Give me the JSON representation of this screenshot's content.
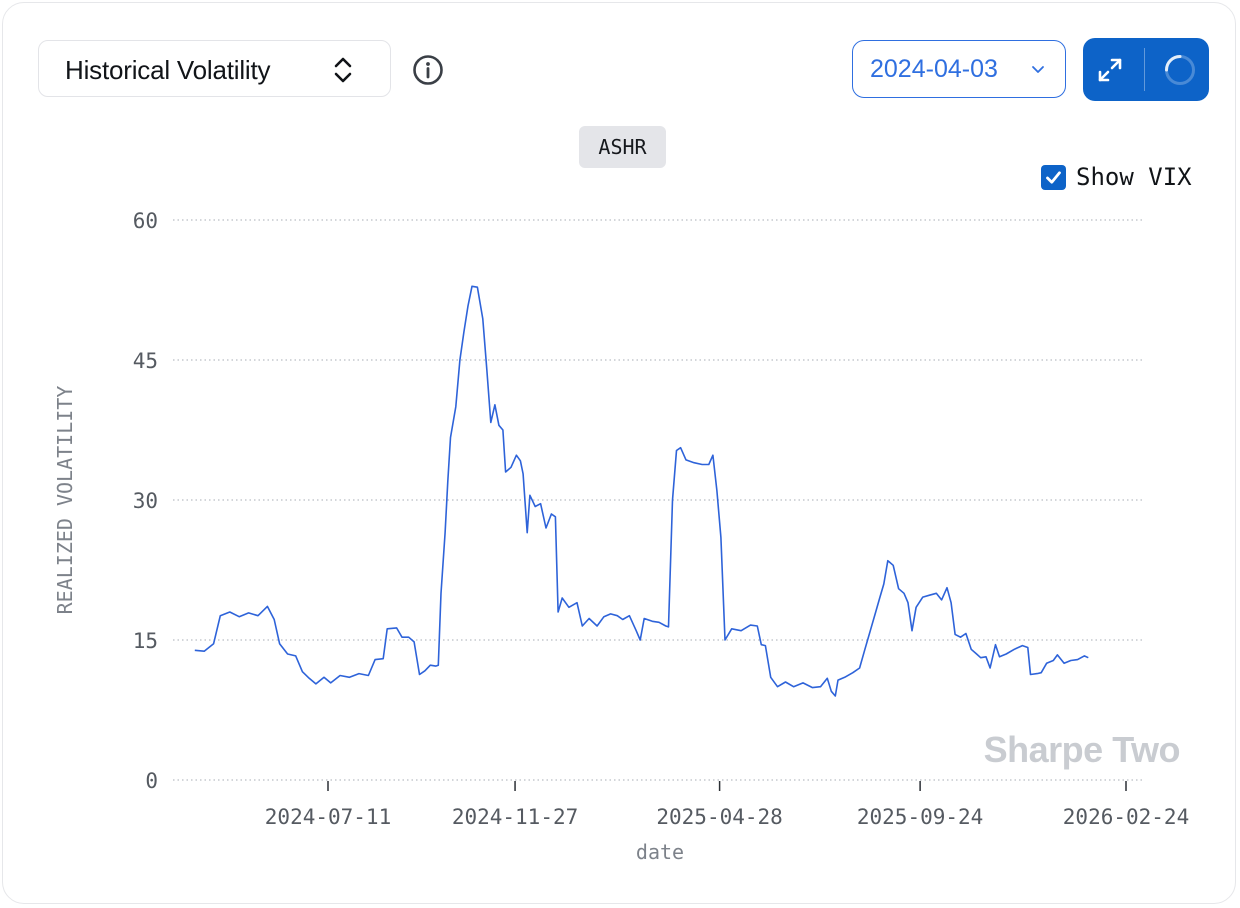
{
  "controls": {
    "metric_label": "Historical Volatility",
    "date_value": "2024-04-03",
    "ticker": "ASHR",
    "show_vix_label": "Show VIX",
    "show_vix_checked": true,
    "accent_color": "#0d63c8",
    "line_color": "#2e63d9"
  },
  "watermark": "Sharpe Two",
  "chart_data": {
    "type": "line",
    "title": "ASHR",
    "xlabel": "date",
    "ylabel": "REALIZED VOLATILITY",
    "ylim": [
      0,
      60
    ],
    "yticks": [
      0,
      15,
      30,
      45,
      60
    ],
    "xticks": [
      "2024-07-11",
      "2024-11-27",
      "2025-04-28",
      "2025-09-24",
      "2026-02-24"
    ],
    "xlim": [
      "2024-04-03",
      "2026-02-24"
    ],
    "grid": "horizontal dotted",
    "series": [
      {
        "name": "ASHR",
        "points": [
          [
            "2024-04-03",
            13.9
          ],
          [
            "2024-04-10",
            13.8
          ],
          [
            "2024-04-17",
            14.6
          ],
          [
            "2024-04-22",
            17.6
          ],
          [
            "2024-04-29",
            18.0
          ],
          [
            "2024-05-06",
            17.5
          ],
          [
            "2024-05-13",
            17.9
          ],
          [
            "2024-05-20",
            17.6
          ],
          [
            "2024-05-27",
            18.6
          ],
          [
            "2024-06-01",
            17.2
          ],
          [
            "2024-06-05",
            14.6
          ],
          [
            "2024-06-11",
            13.5
          ],
          [
            "2024-06-17",
            13.3
          ],
          [
            "2024-06-22",
            11.6
          ],
          [
            "2024-06-27",
            10.9
          ],
          [
            "2024-07-02",
            10.3
          ],
          [
            "2024-07-08",
            11.0
          ],
          [
            "2024-07-13",
            10.4
          ],
          [
            "2024-07-20",
            11.2
          ],
          [
            "2024-07-27",
            11.0
          ],
          [
            "2024-08-03",
            11.4
          ],
          [
            "2024-08-10",
            11.2
          ],
          [
            "2024-08-15",
            12.9
          ],
          [
            "2024-08-21",
            13.0
          ],
          [
            "2024-08-24",
            16.2
          ],
          [
            "2024-08-31",
            16.3
          ],
          [
            "2024-09-04",
            15.3
          ],
          [
            "2024-09-09",
            15.3
          ],
          [
            "2024-09-13",
            14.8
          ],
          [
            "2024-09-17",
            11.3
          ],
          [
            "2024-09-21",
            11.7
          ],
          [
            "2024-09-25",
            12.3
          ],
          [
            "2024-09-29",
            12.2
          ],
          [
            "2024-10-01",
            12.3
          ],
          [
            "2024-10-03",
            20.0
          ],
          [
            "2024-10-06",
            26.5
          ],
          [
            "2024-10-08",
            32.0
          ],
          [
            "2024-10-10",
            36.7
          ],
          [
            "2024-10-14",
            40.0
          ],
          [
            "2024-10-17",
            45.0
          ],
          [
            "2024-10-20",
            48.0
          ],
          [
            "2024-10-23",
            50.8
          ],
          [
            "2024-10-26",
            52.9
          ],
          [
            "2024-10-30",
            52.8
          ],
          [
            "2024-11-03",
            49.4
          ],
          [
            "2024-11-06",
            44.0
          ],
          [
            "2024-11-09",
            38.3
          ],
          [
            "2024-11-12",
            40.2
          ],
          [
            "2024-11-15",
            38.0
          ],
          [
            "2024-11-18",
            37.5
          ],
          [
            "2024-11-20",
            33.0
          ],
          [
            "2024-11-24",
            33.5
          ],
          [
            "2024-11-28",
            34.8
          ],
          [
            "2024-12-01",
            34.2
          ],
          [
            "2024-12-03",
            32.8
          ],
          [
            "2024-12-06",
            26.5
          ],
          [
            "2024-12-08",
            30.5
          ],
          [
            "2024-12-12",
            29.3
          ],
          [
            "2024-12-16",
            29.6
          ],
          [
            "2024-12-20",
            27.0
          ],
          [
            "2024-12-24",
            28.5
          ],
          [
            "2024-12-27",
            28.2
          ],
          [
            "2024-12-29",
            18.0
          ],
          [
            "2025-01-01",
            19.5
          ],
          [
            "2025-01-06",
            18.5
          ],
          [
            "2025-01-12",
            19.0
          ],
          [
            "2025-01-16",
            16.5
          ],
          [
            "2025-01-21",
            17.3
          ],
          [
            "2025-01-27",
            16.5
          ],
          [
            "2025-02-01",
            17.5
          ],
          [
            "2025-02-06",
            17.8
          ],
          [
            "2025-02-11",
            17.6
          ],
          [
            "2025-02-15",
            17.2
          ],
          [
            "2025-02-20",
            17.6
          ],
          [
            "2025-02-25",
            16.0
          ],
          [
            "2025-02-28",
            15.0
          ],
          [
            "2025-03-03",
            17.3
          ],
          [
            "2025-03-09",
            17.0
          ],
          [
            "2025-03-14",
            16.9
          ],
          [
            "2025-03-19",
            16.5
          ],
          [
            "2025-03-21",
            16.4
          ],
          [
            "2025-03-24",
            30.0
          ],
          [
            "2025-03-27",
            35.3
          ],
          [
            "2025-03-30",
            35.6
          ],
          [
            "2025-04-03",
            34.3
          ],
          [
            "2025-04-09",
            34.0
          ],
          [
            "2025-04-15",
            33.8
          ],
          [
            "2025-04-20",
            33.8
          ],
          [
            "2025-04-23",
            34.8
          ],
          [
            "2025-04-26",
            31.0
          ],
          [
            "2025-04-29",
            26.0
          ],
          [
            "2025-05-02",
            15.0
          ],
          [
            "2025-05-07",
            16.2
          ],
          [
            "2025-05-14",
            16.0
          ],
          [
            "2025-05-21",
            16.6
          ],
          [
            "2025-05-26",
            16.5
          ],
          [
            "2025-05-29",
            14.5
          ],
          [
            "2025-06-01",
            14.4
          ],
          [
            "2025-06-05",
            11.0
          ],
          [
            "2025-06-10",
            10.0
          ],
          [
            "2025-06-16",
            10.5
          ],
          [
            "2025-06-22",
            10.0
          ],
          [
            "2025-06-29",
            10.4
          ],
          [
            "2025-07-06",
            9.9
          ],
          [
            "2025-07-12",
            10.0
          ],
          [
            "2025-07-17",
            10.9
          ],
          [
            "2025-07-20",
            9.5
          ],
          [
            "2025-07-23",
            9.0
          ],
          [
            "2025-07-25",
            10.7
          ],
          [
            "2025-07-30",
            11.0
          ],
          [
            "2025-08-05",
            11.5
          ],
          [
            "2025-08-10",
            12.0
          ],
          [
            "2025-08-14",
            14.0
          ],
          [
            "2025-08-18",
            16.0
          ],
          [
            "2025-08-22",
            18.0
          ],
          [
            "2025-08-25",
            19.5
          ],
          [
            "2025-08-28",
            21.0
          ],
          [
            "2025-08-31",
            23.5
          ],
          [
            "2025-09-04",
            23.0
          ],
          [
            "2025-09-08",
            20.5
          ],
          [
            "2025-09-12",
            20.0
          ],
          [
            "2025-09-15",
            19.0
          ],
          [
            "2025-09-18",
            16.0
          ],
          [
            "2025-09-21",
            18.5
          ],
          [
            "2025-09-26",
            19.6
          ],
          [
            "2025-10-01",
            19.8
          ],
          [
            "2025-10-06",
            20.0
          ],
          [
            "2025-10-10",
            19.3
          ],
          [
            "2025-10-14",
            20.6
          ],
          [
            "2025-10-17",
            19.0
          ],
          [
            "2025-10-20",
            15.6
          ],
          [
            "2025-10-24",
            15.3
          ],
          [
            "2025-10-28",
            15.7
          ],
          [
            "2025-11-01",
            14.0
          ],
          [
            "2025-11-05",
            13.5
          ],
          [
            "2025-11-08",
            13.1
          ],
          [
            "2025-11-12",
            13.2
          ],
          [
            "2025-11-15",
            12.0
          ],
          [
            "2025-11-19",
            14.5
          ],
          [
            "2025-11-22",
            13.2
          ],
          [
            "2025-11-27",
            13.5
          ],
          [
            "2025-12-03",
            14.0
          ],
          [
            "2025-12-09",
            14.4
          ],
          [
            "2025-12-13",
            14.2
          ],
          [
            "2025-12-15",
            11.3
          ],
          [
            "2025-12-20",
            11.4
          ],
          [
            "2025-12-23",
            11.5
          ],
          [
            "2025-12-27",
            12.5
          ],
          [
            "2026-01-01",
            12.8
          ],
          [
            "2026-01-04",
            13.4
          ],
          [
            "2026-01-09",
            12.5
          ],
          [
            "2026-01-14",
            12.8
          ],
          [
            "2026-01-19",
            12.9
          ],
          [
            "2026-01-24",
            13.3
          ],
          [
            "2026-01-27",
            13.1
          ]
        ]
      }
    ]
  }
}
